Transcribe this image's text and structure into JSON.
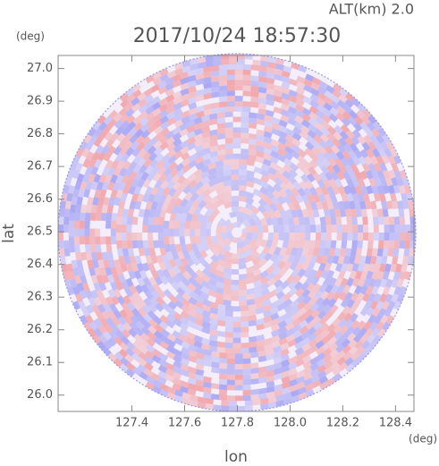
{
  "chart_data": {
    "type": "radar-image",
    "title": "2017/10/24 18:57:30",
    "altitude_label": "ALT(km)  2.0",
    "x_label": "lon",
    "y_label": "lat",
    "x_unit": "(deg)",
    "y_unit": "(deg)",
    "xlim": [
      127.12,
      128.47
    ],
    "ylim": [
      25.95,
      27.04
    ],
    "xticks": [
      127.4,
      127.6,
      127.8,
      {
        "value": 128,
        "label": "128.0"
      },
      128.2,
      128.4
    ],
    "yticks": [
      {
        "value": 26,
        "label": "26.0"
      },
      26.1,
      26.2,
      26.3,
      26.4,
      26.5,
      26.6,
      26.7,
      26.8,
      26.9,
      {
        "value": 27,
        "label": "27.0"
      }
    ]
  }
}
